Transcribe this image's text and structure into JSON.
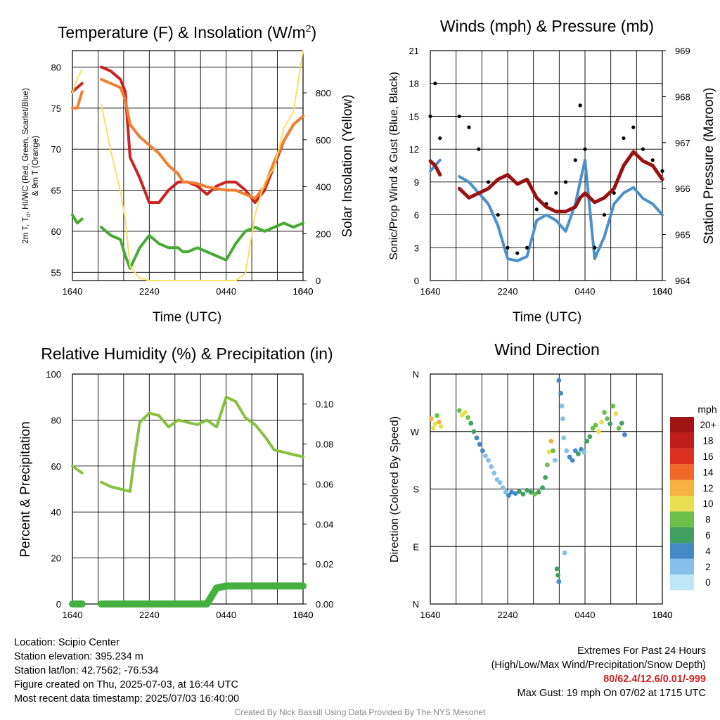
{
  "panels": {
    "temperature": {
      "title_main": "Temperature (F) & Insolation (W/m",
      "title_sup": "2",
      "title_end": ")",
      "ylabel_lines": [
        "2m T, T",
        "d",
        ", HI/WC (Red, Green, Scarlet/Blue)",
        "& 9m T (Orange)"
      ],
      "y2label": "Solar Insolation (Yellow)",
      "xlabel": "Time (UTC)"
    },
    "winds": {
      "title": "Winds (mph) & Pressure (mb)",
      "ylabel": "Sonic/Prop Wind & Gust (Blue, Black)",
      "y2label": "Station Pressure (Maroon)",
      "xlabel": "Time (UTC)"
    },
    "humidity": {
      "title": "Relative Humidity (%) & Precipitation (in)",
      "ylabel": "Percent & Precipitation"
    },
    "direction": {
      "title": "Wind Direction",
      "ylabel": "Direction (Colored By Speed)",
      "legend_title": "mph"
    }
  },
  "info": {
    "location": "Location: Scipio Center",
    "elevation": "Station elevation: 395.234 m",
    "latlon": "Station lat/lon: 42.7562; -76.534",
    "created": "Figure created on Thu, 2025-07-03, at 16:44 UTC",
    "recent": "Most recent data timestamp: 2025/07/03 16:40:00"
  },
  "extremes": {
    "heading": "Extremes For Past 24 Hours",
    "subheading": "(High/Low/Max Wind/Precipitation/Snow Depth)",
    "values": "80/62.4/12.6/0.01/-999",
    "max_gust": "Max Gust: 19 mph On 07/02 at 1715 UTC"
  },
  "credit": "Created By Nick Bassill Using Data Provided By The NYS Mesonet",
  "colors": {
    "temp": "#cc2222",
    "temp9m": "#f08030",
    "dewpoint": "#44aa33",
    "solar": "#f8e060",
    "wind": "#4a90cc",
    "gust": "#000000",
    "pressure": "#991111",
    "rh": "#88c040",
    "precip": "#44b040"
  },
  "chart_data": [
    {
      "type": "line",
      "title": "Temperature (F) & Insolation (W/m2)",
      "xlabel": "Time (UTC)",
      "ylabel": "2m T, Td, HI/WC (Red, Green, Scarlet/Blue) & 9m T (Orange)",
      "y2label": "Solar Insolation (Yellow)",
      "x_ticks": [
        "1640",
        "2240",
        "0440",
        "1040",
        "1640"
      ],
      "ylim": [
        54,
        82
      ],
      "y_ticks": [
        55,
        60,
        65,
        70,
        75,
        80
      ],
      "y2lim": [
        0,
        980
      ],
      "y2_ticks": [
        0,
        200,
        400,
        600,
        800
      ],
      "x_hours": [
        0,
        0.5,
        1,
        2.5,
        3,
        4,
        5,
        5.5,
        6,
        7,
        8,
        9,
        10,
        11,
        11.5,
        12,
        13,
        14,
        15,
        16,
        17,
        18,
        19,
        20,
        21,
        22,
        23,
        24
      ],
      "series": [
        {
          "name": "2m T",
          "color": "#cc2222",
          "values": [
            77,
            77.5,
            78,
            null,
            80,
            79.5,
            78.5,
            77,
            69,
            66.5,
            63.5,
            63.5,
            65,
            66,
            66,
            66,
            65.5,
            64.5,
            65.5,
            66,
            66,
            65,
            63.5,
            65,
            68,
            71,
            73,
            74
          ]
        },
        {
          "name": "9m T",
          "color": "#f08030",
          "values": [
            75,
            75,
            77,
            null,
            78.5,
            78,
            77.5,
            76,
            73,
            71.5,
            70.5,
            69.5,
            68,
            67,
            66,
            66,
            65.8,
            65.4,
            65.2,
            65,
            65,
            64.5,
            64,
            65.5,
            68.5,
            71,
            73,
            74
          ]
        },
        {
          "name": "Td",
          "color": "#44aa33",
          "values": [
            62,
            61,
            61.5,
            null,
            60.5,
            59.5,
            59,
            57,
            55.5,
            58,
            59.5,
            58.5,
            58,
            58,
            57.5,
            57.5,
            58,
            57.5,
            57,
            56.5,
            58.5,
            60,
            60.5,
            60,
            60.5,
            61,
            60.5,
            61
          ]
        },
        {
          "name": "Solar",
          "color": "#f8e060",
          "values": [
            800,
            860,
            900,
            null,
            750,
            550,
            380,
            260,
            60,
            10,
            0,
            0,
            0,
            0,
            0,
            0,
            0,
            0,
            0,
            0,
            0,
            30,
            280,
            420,
            480,
            650,
            720,
            980
          ]
        }
      ]
    },
    {
      "type": "line",
      "title": "Winds (mph) & Pressure (mb)",
      "xlabel": "Time (UTC)",
      "ylabel": "Sonic/Prop Wind & Gust (Blue, Black)",
      "y2label": "Station Pressure (Maroon)",
      "x_ticks": [
        "1640",
        "2240",
        "0440",
        "1040",
        "1640"
      ],
      "ylim": [
        0,
        21
      ],
      "y_ticks": [
        0,
        3,
        6,
        9,
        12,
        15,
        18,
        21
      ],
      "y2lim": [
        964,
        969
      ],
      "y2_ticks": [
        964,
        965,
        966,
        967,
        968,
        969
      ],
      "x_hours": [
        0,
        0.5,
        1,
        2.5,
        3,
        4,
        5,
        6,
        7,
        8,
        9,
        10,
        11,
        12,
        13,
        14,
        15,
        15.5,
        16,
        17,
        18,
        19,
        20,
        21,
        22,
        23,
        24
      ],
      "series": [
        {
          "name": "Wind",
          "color": "#4a90cc",
          "values": [
            10,
            10.5,
            11,
            null,
            9.5,
            9,
            8,
            7,
            5,
            2,
            1.8,
            2.2,
            5.5,
            6,
            5.5,
            4.5,
            7,
            9,
            11,
            2,
            4,
            7,
            8,
            8.5,
            7.5,
            7,
            6
          ]
        },
        {
          "name": "Gust",
          "color": "#000000",
          "values": [
            15,
            18,
            13,
            null,
            15,
            14,
            12,
            9,
            6,
            3,
            2.5,
            3,
            6.5,
            7,
            8,
            9,
            11,
            16,
            12,
            3,
            6,
            8,
            13,
            14,
            12,
            11,
            10
          ]
        },
        {
          "name": "Pressure",
          "color": "#991111",
          "values": [
            966.6,
            966.5,
            966.3,
            null,
            966.0,
            965.8,
            965.9,
            966.0,
            966.2,
            966.3,
            966.1,
            966.2,
            965.8,
            965.6,
            965.5,
            965.5,
            965.6,
            965.8,
            965.9,
            965.7,
            965.8,
            966.0,
            966.5,
            966.8,
            966.6,
            966.5,
            966.2
          ]
        }
      ]
    },
    {
      "type": "line",
      "title": "Relative Humidity (%) & Precipitation (in)",
      "ylabel": "Percent & Precipitation",
      "x_ticks": [
        "1640",
        "2240",
        "0440",
        "1040",
        "1640"
      ],
      "ylim": [
        0,
        100
      ],
      "y_ticks": [
        0,
        20,
        40,
        60,
        80,
        100
      ],
      "y2lim": [
        0,
        0.115
      ],
      "y2_ticks": [
        0.0,
        0.02,
        0.04,
        0.06,
        0.08,
        0.1
      ],
      "y2_tick_labels": [
        "0.00",
        "0.02",
        "0.04",
        "0.06",
        "0.08",
        "0.10"
      ],
      "x_hours": [
        0,
        0.5,
        1,
        2.5,
        3,
        4,
        5,
        6,
        6.5,
        7,
        8,
        9,
        10,
        11,
        12,
        13,
        14,
        15,
        16,
        17,
        18,
        19,
        20,
        21,
        22,
        23,
        24
      ],
      "series": [
        {
          "name": "RH",
          "color": "#88c040",
          "values": [
            60,
            58.5,
            57,
            null,
            53,
            51,
            50,
            49,
            65,
            79,
            83,
            82,
            77,
            80,
            79,
            78,
            80,
            77,
            90,
            88,
            81,
            78,
            73,
            67,
            66,
            65,
            64
          ]
        },
        {
          "name": "Precip",
          "color": "#44b040",
          "values": [
            0,
            0,
            0,
            null,
            0,
            0,
            0,
            0,
            0,
            0,
            0,
            0,
            0,
            0,
            0,
            0,
            0,
            0.008,
            0.009,
            0.009,
            0.009,
            0.009,
            0.009,
            0.009,
            0.009,
            0.009,
            0.009
          ]
        }
      ]
    },
    {
      "type": "scatter",
      "title": "Wind Direction",
      "ylabel": "Direction (Colored By Speed)",
      "x_ticks": [
        "1640",
        "2240",
        "0440",
        "1040",
        "1640"
      ],
      "y_ticks": [
        "N",
        "E",
        "S",
        "W",
        "N"
      ],
      "ylim": [
        0,
        360
      ],
      "legend_title": "mph",
      "legend_levels": [
        "0",
        "2",
        "4",
        "6",
        "8",
        "10",
        "12",
        "14",
        "16",
        "18",
        "20+"
      ],
      "legend_colors": [
        "#bfe6f7",
        "#86c0ea",
        "#4488c6",
        "#3fa060",
        "#6cc04a",
        "#e8e050",
        "#f8b040",
        "#f06828",
        "#dc3020",
        "#c01c1c",
        "#a01414"
      ],
      "points": [
        {
          "h": 0.1,
          "dir": 290,
          "spd": 11
        },
        {
          "h": 0.3,
          "dir": 275,
          "spd": 10
        },
        {
          "h": 0.5,
          "dir": 282,
          "spd": 9
        },
        {
          "h": 0.7,
          "dir": 295,
          "spd": 8
        },
        {
          "h": 0.9,
          "dir": 285,
          "spd": 12
        },
        {
          "h": 1.1,
          "dir": 278,
          "spd": 10
        },
        {
          "h": 3.0,
          "dir": 303,
          "spd": 8
        },
        {
          "h": 3.3,
          "dir": 296,
          "spd": 9
        },
        {
          "h": 3.6,
          "dir": 300,
          "spd": 10
        },
        {
          "h": 3.9,
          "dir": 292,
          "spd": 7
        },
        {
          "h": 4.2,
          "dir": 283,
          "spd": 6
        },
        {
          "h": 4.5,
          "dir": 270,
          "spd": 5
        },
        {
          "h": 4.8,
          "dir": 260,
          "spd": 4
        },
        {
          "h": 5.1,
          "dir": 250,
          "spd": 3
        },
        {
          "h": 5.4,
          "dir": 240,
          "spd": 3
        },
        {
          "h": 5.7,
          "dir": 232,
          "spd": 2
        },
        {
          "h": 6.0,
          "dir": 225,
          "spd": 2
        },
        {
          "h": 6.3,
          "dir": 215,
          "spd": 2
        },
        {
          "h": 6.6,
          "dir": 205,
          "spd": 2
        },
        {
          "h": 6.9,
          "dir": 195,
          "spd": 2
        },
        {
          "h": 7.2,
          "dir": 190,
          "spd": 1
        },
        {
          "h": 7.5,
          "dir": 182,
          "spd": 2
        },
        {
          "h": 7.8,
          "dir": 175,
          "spd": 2
        },
        {
          "h": 8.1,
          "dir": 170,
          "spd": 3
        },
        {
          "h": 8.4,
          "dir": 175,
          "spd": 4
        },
        {
          "h": 8.8,
          "dir": 173,
          "spd": 4
        },
        {
          "h": 9.2,
          "dir": 176,
          "spd": 5
        },
        {
          "h": 9.6,
          "dir": 172,
          "spd": 6
        },
        {
          "h": 10.0,
          "dir": 178,
          "spd": 6
        },
        {
          "h": 10.4,
          "dir": 175,
          "spd": 5
        },
        {
          "h": 10.8,
          "dir": 172,
          "spd": 7
        },
        {
          "h": 11.2,
          "dir": 175,
          "spd": 6
        },
        {
          "h": 11.6,
          "dir": 182,
          "spd": 5
        },
        {
          "h": 11.9,
          "dir": 198,
          "spd": 6
        },
        {
          "h": 12.1,
          "dir": 218,
          "spd": 7
        },
        {
          "h": 12.3,
          "dir": 238,
          "spd": 9
        },
        {
          "h": 12.5,
          "dir": 255,
          "spd": 11
        },
        {
          "h": 12.7,
          "dir": 240,
          "spd": 8
        },
        {
          "h": 12.9,
          "dir": 225,
          "spd": 1
        },
        {
          "h": 13.1,
          "dir": 55,
          "spd": 5
        },
        {
          "h": 13.2,
          "dir": 45,
          "spd": 6
        },
        {
          "h": 13.3,
          "dir": 35,
          "spd": 4
        },
        {
          "h": 13.3,
          "dir": 350,
          "spd": 4
        },
        {
          "h": 13.5,
          "dir": 330,
          "spd": 4
        },
        {
          "h": 13.6,
          "dir": 310,
          "spd": 2
        },
        {
          "h": 13.7,
          "dir": 290,
          "spd": 1
        },
        {
          "h": 13.8,
          "dir": 260,
          "spd": 1
        },
        {
          "h": 13.9,
          "dir": 80,
          "spd": 1
        },
        {
          "h": 14.1,
          "dir": 240,
          "spd": 2
        },
        {
          "h": 14.4,
          "dir": 230,
          "spd": 3
        },
        {
          "h": 14.7,
          "dir": 225,
          "spd": 4
        },
        {
          "h": 15.0,
          "dir": 240,
          "spd": 4
        },
        {
          "h": 15.3,
          "dir": 235,
          "spd": 5
        },
        {
          "h": 15.6,
          "dir": 242,
          "spd": 3
        },
        {
          "h": 15.9,
          "dir": 238,
          "spd": 2
        },
        {
          "h": 16.2,
          "dir": 255,
          "spd": 6
        },
        {
          "h": 16.5,
          "dir": 262,
          "spd": 6
        },
        {
          "h": 16.8,
          "dir": 275,
          "spd": 7
        },
        {
          "h": 17.1,
          "dir": 280,
          "spd": 8
        },
        {
          "h": 17.4,
          "dir": 270,
          "spd": 9
        },
        {
          "h": 17.7,
          "dir": 285,
          "spd": 10
        },
        {
          "h": 18.0,
          "dir": 300,
          "spd": 8
        },
        {
          "h": 18.3,
          "dir": 290,
          "spd": 7
        },
        {
          "h": 18.6,
          "dir": 282,
          "spd": 6
        },
        {
          "h": 18.9,
          "dir": 310,
          "spd": 8
        },
        {
          "h": 19.2,
          "dir": 298,
          "spd": 9
        },
        {
          "h": 19.5,
          "dir": 275,
          "spd": 7
        },
        {
          "h": 19.8,
          "dir": 283,
          "spd": 6
        },
        {
          "h": 20.1,
          "dir": 265,
          "spd": 4
        }
      ]
    }
  ]
}
